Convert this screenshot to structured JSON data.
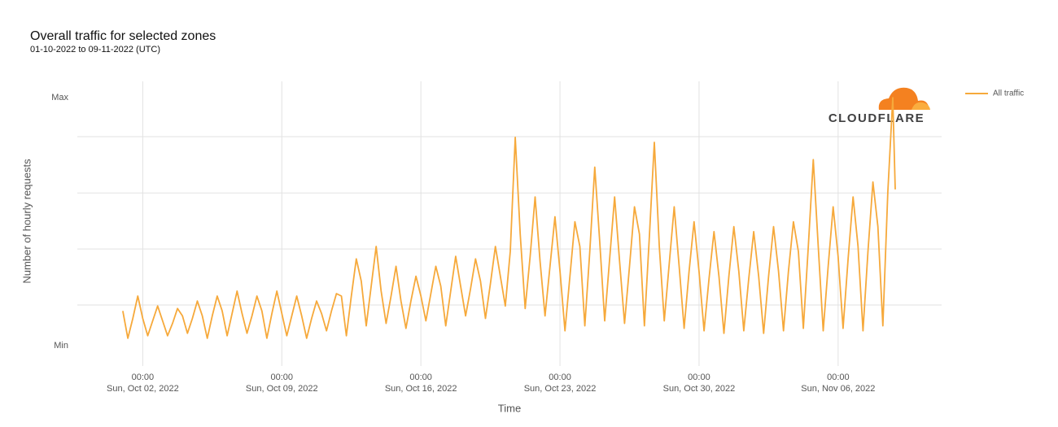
{
  "chart_data": {
    "type": "line",
    "title": "Overall traffic for selected zones",
    "subtitle": "01-10-2022 to 09-11-2022 (UTC)",
    "y_label": "Number of hourly requests",
    "x_label": "Time",
    "logo_text": "CLOUDFLARE",
    "legend": "upper right",
    "ylim": [
      -8.2,
      106.6
    ],
    "yticks": [
      {
        "value": 0,
        "label": "Min"
      },
      {
        "value": 100,
        "label": "Max"
      }
    ],
    "ygrid": [
      16.4,
      39,
      61.6,
      84.3
    ],
    "xlim": [
      "2022-09-28T17:00",
      "2022-11-11T05:00"
    ],
    "xticks": [
      {
        "value": "2022-10-02T00:00",
        "label": [
          "00:00",
          "Sun, Oct 02, 2022"
        ]
      },
      {
        "value": "2022-10-09T00:00",
        "label": [
          "00:00",
          "Sun, Oct 09, 2022"
        ]
      },
      {
        "value": "2022-10-16T00:00",
        "label": [
          "00:00",
          "Sun, Oct 16, 2022"
        ]
      },
      {
        "value": "2022-10-23T00:00",
        "label": [
          "00:00",
          "Sun, Oct 23, 2022"
        ]
      },
      {
        "value": "2022-10-30T00:00",
        "label": [
          "00:00",
          "Sun, Oct 30, 2022"
        ]
      },
      {
        "value": "2022-11-06T00:00",
        "label": [
          "00:00",
          "Sun, Nov 06, 2022"
        ]
      }
    ],
    "x": [
      "2022-10-01T00:00",
      "2022-10-01T06:00",
      "2022-10-01T12:00",
      "2022-10-01T18:00",
      "2022-10-02T00:00",
      "2022-10-02T06:00",
      "2022-10-02T12:00",
      "2022-10-02T18:00",
      "2022-10-03T00:00",
      "2022-10-03T06:00",
      "2022-10-03T12:00",
      "2022-10-03T18:00",
      "2022-10-04T00:00",
      "2022-10-04T06:00",
      "2022-10-04T12:00",
      "2022-10-04T18:00",
      "2022-10-05T00:00",
      "2022-10-05T06:00",
      "2022-10-05T12:00",
      "2022-10-05T18:00",
      "2022-10-06T00:00",
      "2022-10-06T06:00",
      "2022-10-06T12:00",
      "2022-10-06T18:00",
      "2022-10-07T00:00",
      "2022-10-07T06:00",
      "2022-10-07T12:00",
      "2022-10-07T18:00",
      "2022-10-08T00:00",
      "2022-10-08T06:00",
      "2022-10-08T12:00",
      "2022-10-08T18:00",
      "2022-10-09T00:00",
      "2022-10-09T06:00",
      "2022-10-09T12:00",
      "2022-10-09T18:00",
      "2022-10-10T00:00",
      "2022-10-10T06:00",
      "2022-10-10T12:00",
      "2022-10-10T18:00",
      "2022-10-11T00:00",
      "2022-10-11T06:00",
      "2022-10-11T12:00",
      "2022-10-11T18:00",
      "2022-10-12T00:00",
      "2022-10-12T06:00",
      "2022-10-12T12:00",
      "2022-10-12T18:00",
      "2022-10-13T00:00",
      "2022-10-13T06:00",
      "2022-10-13T12:00",
      "2022-10-13T18:00",
      "2022-10-14T00:00",
      "2022-10-14T06:00",
      "2022-10-14T12:00",
      "2022-10-14T18:00",
      "2022-10-15T00:00",
      "2022-10-15T06:00",
      "2022-10-15T12:00",
      "2022-10-15T18:00",
      "2022-10-16T00:00",
      "2022-10-16T06:00",
      "2022-10-16T12:00",
      "2022-10-16T18:00",
      "2022-10-17T00:00",
      "2022-10-17T06:00",
      "2022-10-17T12:00",
      "2022-10-17T18:00",
      "2022-10-18T00:00",
      "2022-10-18T06:00",
      "2022-10-18T12:00",
      "2022-10-18T18:00",
      "2022-10-19T00:00",
      "2022-10-19T06:00",
      "2022-10-19T12:00",
      "2022-10-19T18:00",
      "2022-10-20T00:00",
      "2022-10-20T06:00",
      "2022-10-20T12:00",
      "2022-10-20T18:00",
      "2022-10-21T00:00",
      "2022-10-21T06:00",
      "2022-10-21T12:00",
      "2022-10-21T18:00",
      "2022-10-22T00:00",
      "2022-10-22T06:00",
      "2022-10-22T12:00",
      "2022-10-22T18:00",
      "2022-10-23T00:00",
      "2022-10-23T06:00",
      "2022-10-23T12:00",
      "2022-10-23T18:00",
      "2022-10-24T00:00",
      "2022-10-24T06:00",
      "2022-10-24T12:00",
      "2022-10-24T18:00",
      "2022-10-25T00:00",
      "2022-10-25T06:00",
      "2022-10-25T12:00",
      "2022-10-25T18:00",
      "2022-10-26T00:00",
      "2022-10-26T06:00",
      "2022-10-26T12:00",
      "2022-10-26T18:00",
      "2022-10-27T00:00",
      "2022-10-27T06:00",
      "2022-10-27T12:00",
      "2022-10-27T18:00",
      "2022-10-28T00:00",
      "2022-10-28T06:00",
      "2022-10-28T12:00",
      "2022-10-28T18:00",
      "2022-10-29T00:00",
      "2022-10-29T06:00",
      "2022-10-29T12:00",
      "2022-10-29T18:00",
      "2022-10-30T00:00",
      "2022-10-30T06:00",
      "2022-10-30T12:00",
      "2022-10-30T18:00",
      "2022-10-31T00:00",
      "2022-10-31T06:00",
      "2022-10-31T12:00",
      "2022-10-31T18:00",
      "2022-11-01T00:00",
      "2022-11-01T06:00",
      "2022-11-01T12:00",
      "2022-11-01T18:00",
      "2022-11-02T00:00",
      "2022-11-02T06:00",
      "2022-11-02T12:00",
      "2022-11-02T18:00",
      "2022-11-03T00:00",
      "2022-11-03T06:00",
      "2022-11-03T12:00",
      "2022-11-03T18:00",
      "2022-11-04T00:00",
      "2022-11-04T06:00",
      "2022-11-04T12:00",
      "2022-11-04T18:00",
      "2022-11-05T00:00",
      "2022-11-05T06:00",
      "2022-11-05T12:00",
      "2022-11-05T18:00",
      "2022-11-06T00:00",
      "2022-11-06T06:00",
      "2022-11-06T12:00",
      "2022-11-06T18:00",
      "2022-11-07T00:00",
      "2022-11-07T06:00",
      "2022-11-07T12:00",
      "2022-11-07T18:00",
      "2022-11-08T00:00",
      "2022-11-08T06:00",
      "2022-11-08T12:00",
      "2022-11-08T18:00",
      "2022-11-08T21:00"
    ],
    "series": [
      {
        "name": "All traffic",
        "color": "#f6a93b",
        "values": [
          14,
          3,
          11,
          20,
          11,
          4,
          10,
          16,
          10,
          4,
          9,
          15,
          12,
          5,
          11,
          18,
          12,
          3,
          12,
          20,
          14,
          4,
          13,
          22,
          13,
          5,
          12,
          20,
          14,
          3,
          13,
          22,
          13,
          4,
          12,
          20,
          12,
          3,
          11,
          18,
          13,
          6,
          14,
          21,
          20,
          4,
          20,
          35,
          26,
          8,
          24,
          40,
          22,
          9,
          20,
          32,
          18,
          7,
          18,
          28,
          20,
          10,
          21,
          32,
          24,
          8,
          22,
          36,
          24,
          12,
          23,
          35,
          26,
          11,
          25,
          40,
          28,
          16,
          38,
          84,
          45,
          15,
          36,
          60,
          34,
          12,
          32,
          52,
          30,
          6,
          28,
          50,
          40,
          8,
          38,
          72,
          42,
          10,
          35,
          60,
          34,
          9,
          32,
          56,
          45,
          8,
          44,
          82,
          40,
          10,
          33,
          56,
          32,
          7,
          30,
          50,
          30,
          6,
          27,
          46,
          28,
          5,
          28,
          48,
          30,
          6,
          27,
          46,
          28,
          5,
          28,
          48,
          30,
          6,
          30,
          50,
          38,
          7,
          40,
          75,
          40,
          6,
          32,
          56,
          36,
          7,
          35,
          60,
          40,
          6,
          38,
          66,
          48,
          8,
          62,
          100,
          63
        ]
      }
    ]
  }
}
